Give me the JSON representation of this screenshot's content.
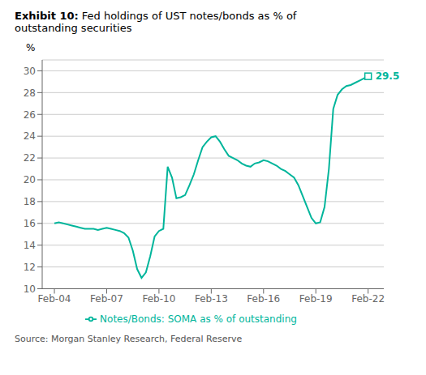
{
  "chart_data": {
    "type": "line",
    "title": "Exhibit 10:",
    "subtitle": "Fed holdings of UST notes/bonds as % of\noutstanding securities",
    "y_label": "%",
    "source": "Source: Morgan Stanley Research, Federal Reserve",
    "x": [
      2004.0,
      2004.25,
      2004.5,
      2004.75,
      2005.0,
      2005.25,
      2005.5,
      2005.75,
      2006.0,
      2006.25,
      2006.5,
      2006.75,
      2007.0,
      2007.25,
      2007.5,
      2007.75,
      2008.0,
      2008.25,
      2008.5,
      2008.75,
      2009.0,
      2009.25,
      2009.5,
      2009.75,
      2010.0,
      2010.25,
      2010.5,
      2010.75,
      2011.0,
      2011.25,
      2011.5,
      2011.75,
      2012.0,
      2012.25,
      2012.5,
      2012.75,
      2013.0,
      2013.25,
      2013.5,
      2013.75,
      2014.0,
      2014.25,
      2014.5,
      2014.75,
      2015.0,
      2015.25,
      2015.5,
      2015.75,
      2016.0,
      2016.25,
      2016.5,
      2016.75,
      2017.0,
      2017.25,
      2017.5,
      2017.75,
      2018.0,
      2018.25,
      2018.5,
      2018.75,
      2019.0,
      2019.25,
      2019.5,
      2019.75,
      2020.0,
      2020.25,
      2020.5,
      2020.75,
      2021.0,
      2021.25,
      2021.5,
      2021.75,
      2022.0
    ],
    "series": [
      {
        "name": "Notes/Bonds: SOMA as % of outstanding",
        "color": "#00B59B",
        "values": [
          16.0,
          16.1,
          16.0,
          15.9,
          15.8,
          15.7,
          15.6,
          15.5,
          15.5,
          15.5,
          15.4,
          15.5,
          15.6,
          15.5,
          15.4,
          15.3,
          15.1,
          14.7,
          13.5,
          11.8,
          11.0,
          11.5,
          13.0,
          14.8,
          15.3,
          15.5,
          21.2,
          20.2,
          18.3,
          18.4,
          18.6,
          19.5,
          20.5,
          21.8,
          23.0,
          23.5,
          23.9,
          24.0,
          23.5,
          22.8,
          22.2,
          22.0,
          21.8,
          21.5,
          21.3,
          21.2,
          21.5,
          21.6,
          21.8,
          21.7,
          21.5,
          21.3,
          21.0,
          20.8,
          20.5,
          20.2,
          19.5,
          18.5,
          17.5,
          16.5,
          16.0,
          16.1,
          17.5,
          21.0,
          26.5,
          27.8,
          28.3,
          28.6,
          28.7,
          28.9,
          29.1,
          29.3,
          29.5
        ]
      }
    ],
    "annotations": [
      {
        "x": 2022.0,
        "y": 29.5,
        "text": "29.5",
        "marker": "square"
      }
    ],
    "xlim": [
      2003.3,
      2022.9
    ],
    "xticks": [
      {
        "value": 2004,
        "label": "Feb-04"
      },
      {
        "value": 2007,
        "label": "Feb-07"
      },
      {
        "value": 2010,
        "label": "Feb-10"
      },
      {
        "value": 2013,
        "label": "Feb-13"
      },
      {
        "value": 2016,
        "label": "Feb-16"
      },
      {
        "value": 2019,
        "label": "Feb-19"
      },
      {
        "value": 2022,
        "label": "Feb-22"
      }
    ],
    "ylim": [
      10,
      31
    ],
    "yticks": [
      10,
      12,
      14,
      16,
      18,
      20,
      22,
      24,
      26,
      28,
      30
    ],
    "grid": true,
    "legend": "bottom"
  }
}
